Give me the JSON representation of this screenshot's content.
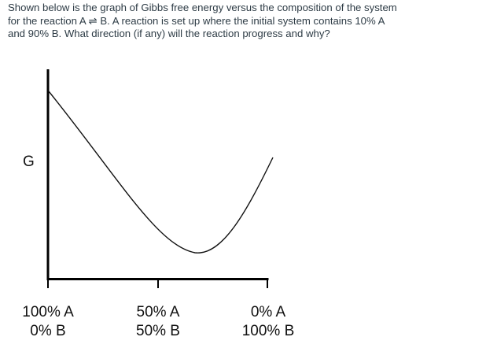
{
  "question": {
    "lines": [
      "Shown below is the graph of Gibbs free energy versus the composition of the system",
      "for the reaction A ⇌ B. A reaction is set up where the initial system contains 10% A",
      "and 90% B. What direction (if any) will the reaction progress and why?"
    ]
  },
  "graph": {
    "y_axis_label": "G",
    "ticks": [
      {
        "line1": "100% A",
        "line2": "0% B"
      },
      {
        "line1": "50% A",
        "line2": "50% B"
      },
      {
        "line1": "0% A",
        "line2": "100% B"
      }
    ],
    "curve_color": "#111111"
  }
}
